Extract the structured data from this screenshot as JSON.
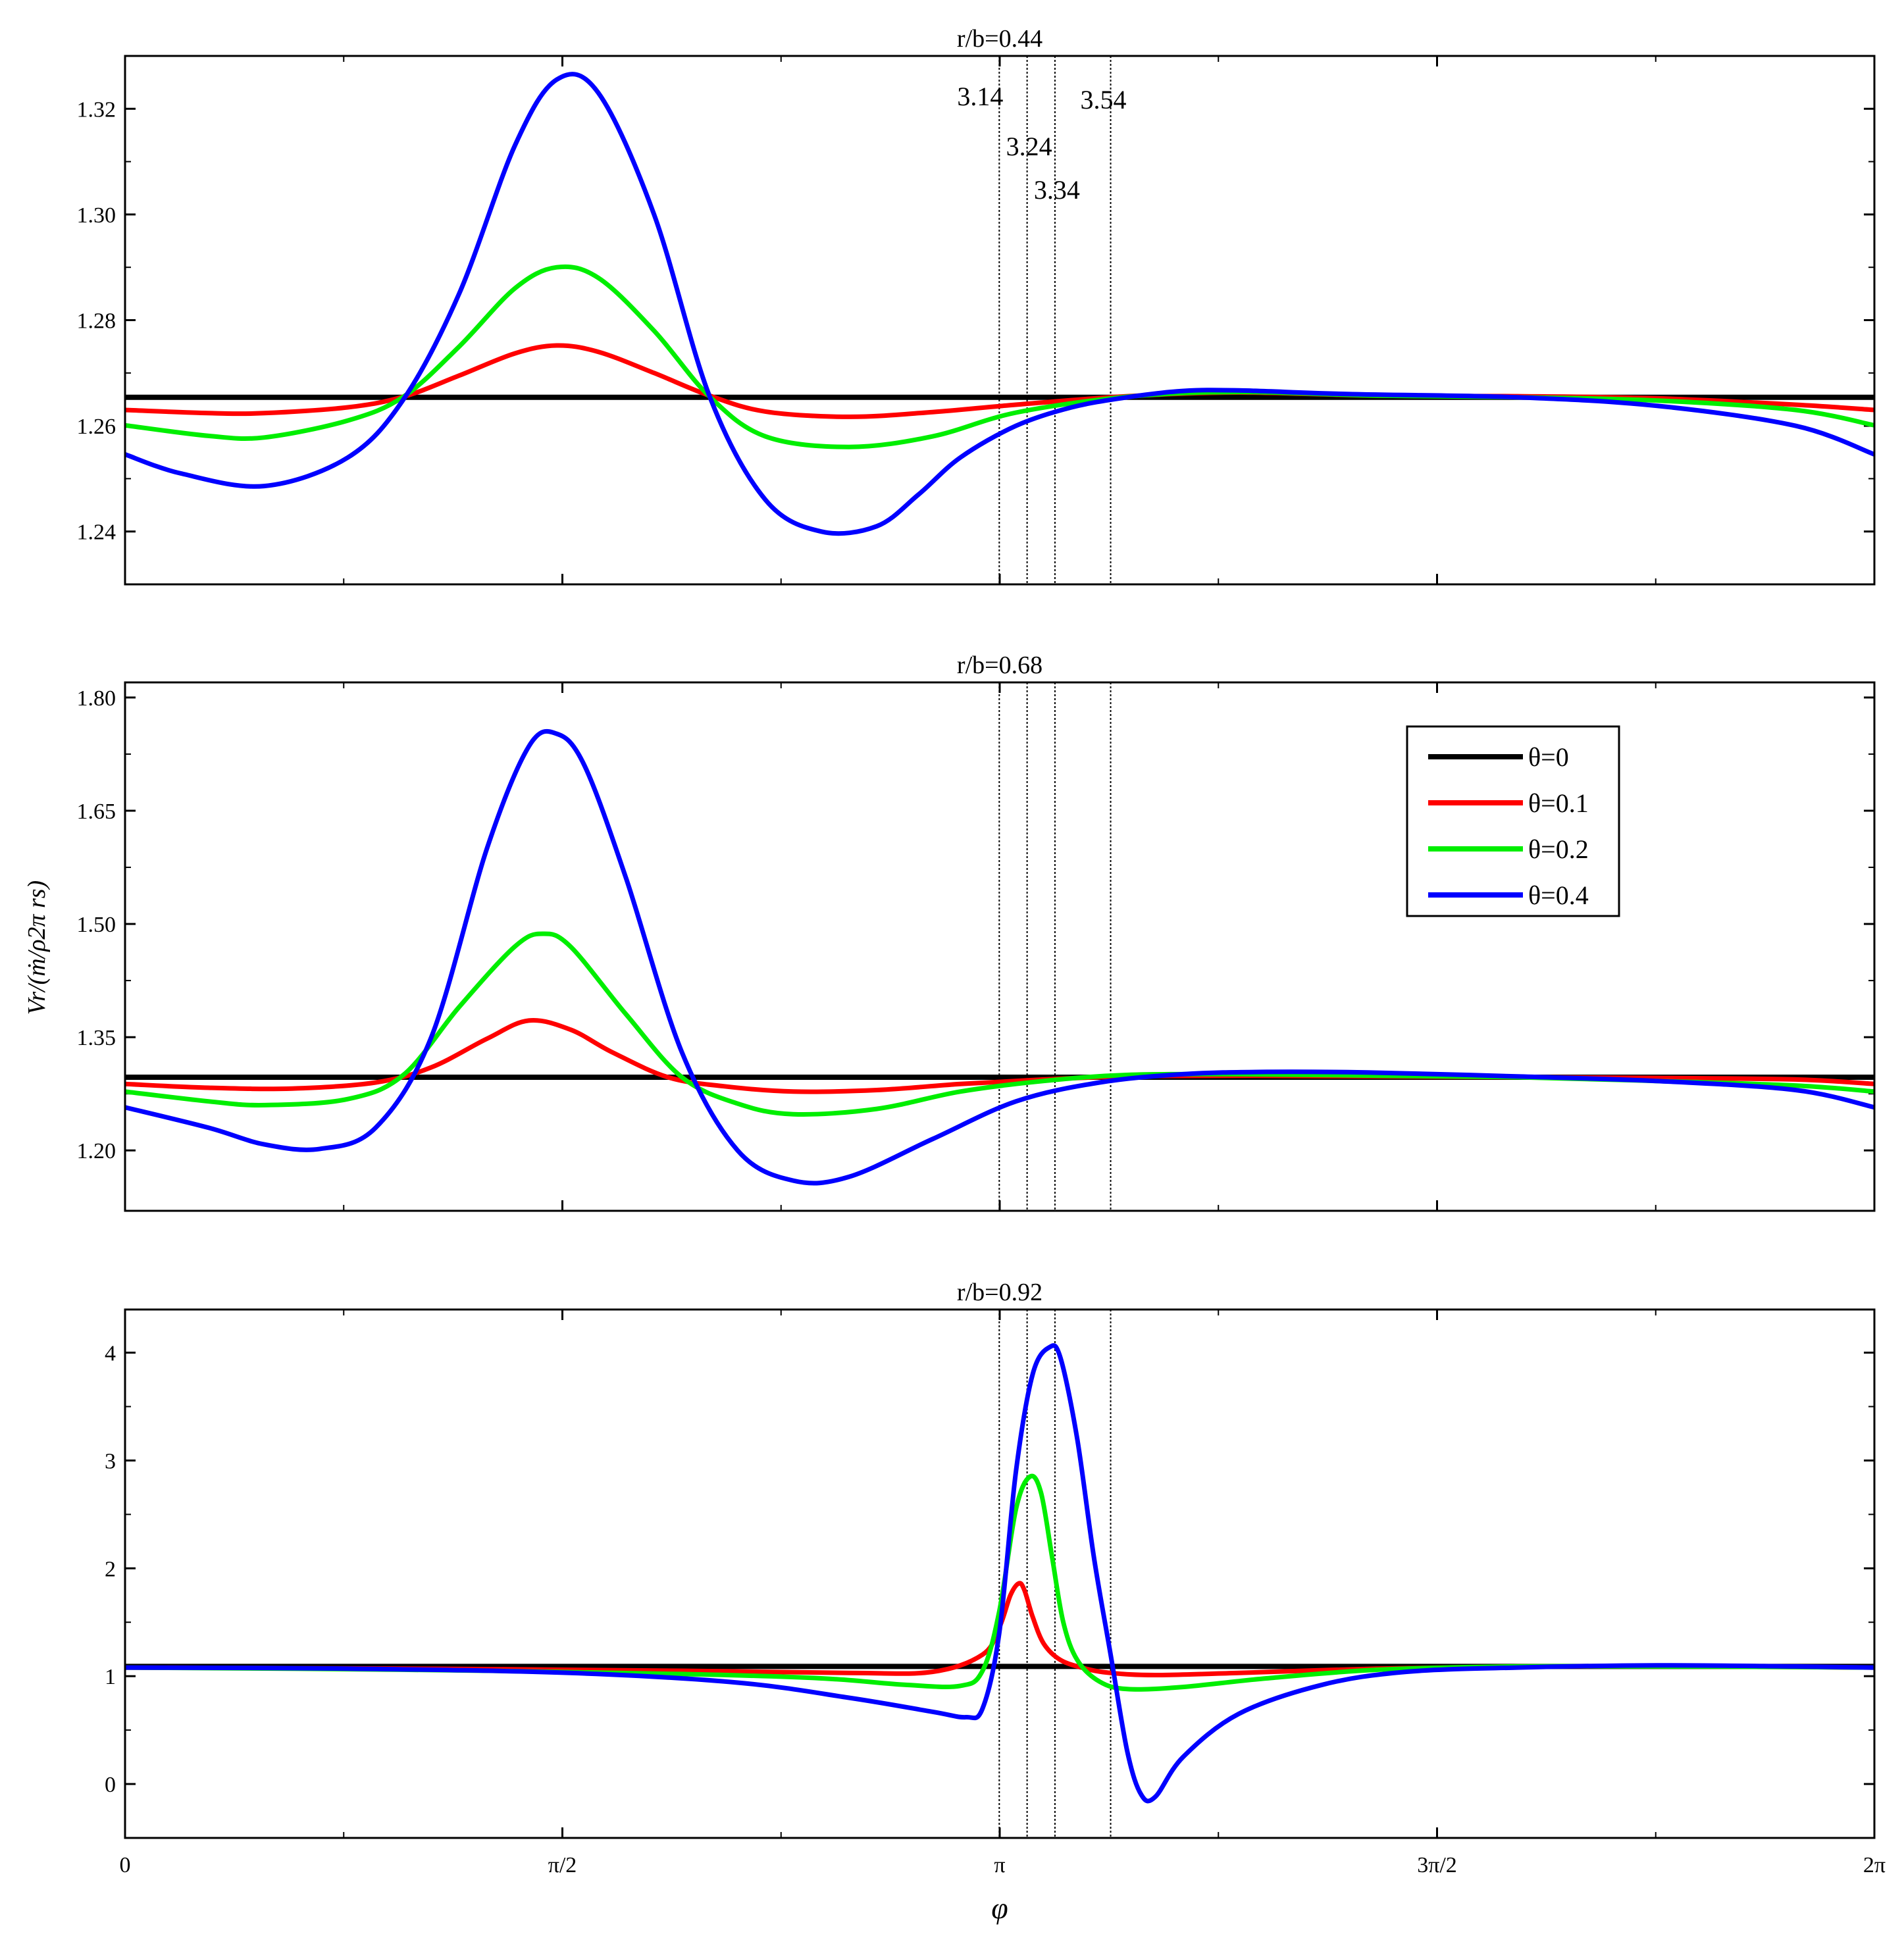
{
  "chart_data": {
    "type": "line",
    "ylabel": "Vr/(ṁ/ρ2π rs)",
    "xlabel": "φ",
    "x_range": [
      0,
      6.2832
    ],
    "x_ticks": [
      {
        "value": 0,
        "label": "0"
      },
      {
        "value": 1.5708,
        "label": "π/2"
      },
      {
        "value": 3.1416,
        "label": "π"
      },
      {
        "value": 4.7124,
        "label": "3π/2"
      },
      {
        "value": 6.2832,
        "label": "2π"
      }
    ],
    "vlines": [
      {
        "x": 3.14,
        "label": "3.14"
      },
      {
        "x": 3.24,
        "label": "3.24"
      },
      {
        "x": 3.34,
        "label": "3.34"
      },
      {
        "x": 3.54,
        "label": "3.54"
      }
    ],
    "legend": {
      "placement": "panel 2, upper right",
      "entries": [
        {
          "label": "θ=0",
          "color": "#000000"
        },
        {
          "label": "θ=0.1",
          "color": "#ff0000"
        },
        {
          "label": "θ=0.2",
          "color": "#00ee00"
        },
        {
          "label": "θ=0.4",
          "color": "#0000ff"
        }
      ]
    },
    "panels": [
      {
        "title": "r/b=0.44",
        "ylim": [
          1.23,
          1.33
        ],
        "yticks": [
          1.24,
          1.26,
          1.28,
          1.3,
          1.32
        ],
        "ytick_labels": [
          "1.24",
          "1.26",
          "1.28",
          "1.30",
          "1.32"
        ],
        "series": [
          {
            "name": "θ=0",
            "color": "#000000",
            "x": [
              0,
              6.2832
            ],
            "y": [
              1.2654,
              1.2654
            ]
          },
          {
            "name": "θ=0.1",
            "color": "#ff0000",
            "x": [
              0,
              0.3,
              0.5,
              0.8,
              1.0,
              1.2,
              1.4,
              1.55,
              1.7,
              1.9,
              2.1,
              2.3,
              2.6,
              2.9,
              3.2,
              3.6,
              4.0,
              4.5,
              5.0,
              5.5,
              6.0,
              6.2832
            ],
            "y": [
              1.263,
              1.2624,
              1.2624,
              1.2635,
              1.2655,
              1.2695,
              1.2737,
              1.2752,
              1.274,
              1.27,
              1.2657,
              1.2627,
              1.2617,
              1.2626,
              1.264,
              1.2656,
              1.2663,
              1.2657,
              1.2656,
              1.2652,
              1.264,
              1.263
            ]
          },
          {
            "name": "θ=0.2",
            "color": "#00ee00",
            "x": [
              0,
              0.3,
              0.5,
              0.8,
              1.0,
              1.2,
              1.4,
              1.55,
              1.7,
              1.9,
              2.1,
              2.3,
              2.6,
              2.9,
              3.2,
              3.6,
              4.0,
              4.5,
              5.0,
              5.5,
              6.0,
              6.2832
            ],
            "y": [
              1.2601,
              1.2581,
              1.2578,
              1.261,
              1.2655,
              1.275,
              1.286,
              1.29,
              1.288,
              1.278,
              1.2655,
              1.258,
              1.256,
              1.258,
              1.2625,
              1.2655,
              1.2664,
              1.2657,
              1.2654,
              1.2648,
              1.263,
              1.2601
            ]
          },
          {
            "name": "θ=0.4",
            "color": "#0000ff",
            "x": [
              0,
              0.2,
              0.5,
              0.8,
              1.0,
              1.2,
              1.4,
              1.55,
              1.7,
              1.9,
              2.1,
              2.3,
              2.5,
              2.7,
              2.85,
              3.0,
              3.2,
              3.4,
              3.6,
              3.8,
              4.0,
              4.4,
              5.0,
              5.5,
              6.0,
              6.2832
            ],
            "y": [
              1.2546,
              1.251,
              1.2486,
              1.254,
              1.265,
              1.285,
              1.313,
              1.3255,
              1.323,
              1.3,
              1.2655,
              1.246,
              1.24,
              1.241,
              1.247,
              1.254,
              1.26,
              1.2635,
              1.2654,
              1.2666,
              1.2667,
              1.266,
              1.2654,
              1.2638,
              1.26,
              1.2546
            ]
          }
        ]
      },
      {
        "title": "r/b=0.68",
        "ylim": [
          1.12,
          1.82
        ],
        "yticks": [
          1.2,
          1.35,
          1.5,
          1.65,
          1.8
        ],
        "ytick_labels": [
          "1.20",
          "1.35",
          "1.50",
          "1.65",
          "1.80"
        ],
        "series": [
          {
            "name": "θ=0",
            "color": "#000000",
            "x": [
              0,
              6.2832
            ],
            "y": [
              1.297,
              1.297
            ]
          },
          {
            "name": "θ=0.1",
            "color": "#ff0000",
            "x": [
              0,
              0.3,
              0.6,
              0.9,
              1.1,
              1.3,
              1.45,
              1.6,
              1.75,
              1.95,
              2.15,
              2.4,
              2.7,
              3.0,
              3.3,
              3.6,
              4.0,
              4.5,
              5.0,
              5.5,
              6.0,
              6.2832
            ],
            "y": [
              1.288,
              1.283,
              1.282,
              1.29,
              1.31,
              1.348,
              1.372,
              1.36,
              1.33,
              1.297,
              1.285,
              1.278,
              1.28,
              1.288,
              1.294,
              1.298,
              1.299,
              1.298,
              1.297,
              1.296,
              1.294,
              1.288
            ]
          },
          {
            "name": "θ=0.2",
            "color": "#00ee00",
            "x": [
              0,
              0.3,
              0.5,
              0.8,
              1.0,
              1.2,
              1.4,
              1.5,
              1.6,
              1.8,
              2.0,
              2.2,
              2.4,
              2.7,
              3.0,
              3.3,
              3.6,
              4.0,
              4.5,
              5.0,
              5.5,
              6.0,
              6.2832
            ],
            "y": [
              1.278,
              1.265,
              1.26,
              1.268,
              1.3,
              1.39,
              1.47,
              1.487,
              1.47,
              1.38,
              1.297,
              1.262,
              1.248,
              1.255,
              1.278,
              1.292,
              1.3,
              1.301,
              1.299,
              1.297,
              1.292,
              1.286,
              1.278
            ]
          },
          {
            "name": "θ=0.4",
            "color": "#0000ff",
            "x": [
              0,
              0.3,
              0.5,
              0.7,
              0.9,
              1.1,
              1.3,
              1.45,
              1.55,
              1.65,
              1.8,
              2.0,
              2.2,
              2.4,
              2.6,
              2.9,
              3.2,
              3.5,
              3.8,
              4.1,
              4.5,
              5.0,
              5.5,
              6.0,
              6.2832
            ],
            "y": [
              1.257,
              1.23,
              1.208,
              1.202,
              1.23,
              1.35,
              1.6,
              1.735,
              1.752,
              1.71,
              1.56,
              1.33,
              1.2,
              1.16,
              1.165,
              1.215,
              1.265,
              1.29,
              1.301,
              1.304,
              1.303,
              1.298,
              1.292,
              1.28,
              1.257
            ]
          }
        ]
      },
      {
        "title": "r/b=0.92",
        "ylim": [
          -0.5,
          4.4
        ],
        "yticks": [
          0,
          1,
          2,
          3,
          4
        ],
        "ytick_labels": [
          "0",
          "1",
          "2",
          "3",
          "4"
        ],
        "series": [
          {
            "name": "θ=0",
            "color": "#000000",
            "x": [
              0,
              6.2832
            ],
            "y": [
              1.09,
              1.09
            ]
          },
          {
            "name": "θ=0.1",
            "color": "#ff0000",
            "x": [
              0,
              1.0,
              2.0,
              2.6,
              2.9,
              3.08,
              3.14,
              3.18,
              3.21,
              3.23,
              3.26,
              3.3,
              3.36,
              3.45,
              3.54,
              3.7,
              4.0,
              4.5,
              5.0,
              5.5,
              6.0,
              6.2832
            ],
            "y": [
              1.08,
              1.07,
              1.05,
              1.03,
              1.04,
              1.2,
              1.45,
              1.75,
              1.86,
              1.8,
              1.55,
              1.3,
              1.15,
              1.07,
              1.03,
              1.01,
              1.03,
              1.07,
              1.09,
              1.09,
              1.085,
              1.08
            ]
          },
          {
            "name": "θ=0.2",
            "color": "#00ee00",
            "x": [
              0,
              1.0,
              2.0,
              2.5,
              2.8,
              3.0,
              3.08,
              3.14,
              3.2,
              3.25,
              3.29,
              3.33,
              3.37,
              3.42,
              3.5,
              3.6,
              3.8,
              4.1,
              4.5,
              5.0,
              5.5,
              6.0,
              6.2832
            ],
            "y": [
              1.08,
              1.06,
              1.02,
              0.98,
              0.92,
              0.91,
              1.05,
              1.6,
              2.55,
              2.85,
              2.7,
              2.1,
              1.5,
              1.15,
              0.95,
              0.88,
              0.9,
              0.98,
              1.06,
              1.09,
              1.09,
              1.085,
              1.08
            ]
          },
          {
            "name": "θ=0.4",
            "color": "#0000ff",
            "x": [
              0,
              0.8,
              1.6,
              2.2,
              2.6,
              2.9,
              3.02,
              3.08,
              3.14,
              3.2,
              3.26,
              3.32,
              3.36,
              3.42,
              3.48,
              3.54,
              3.6,
              3.65,
              3.7,
              3.8,
              4.0,
              4.3,
              4.6,
              5.0,
              5.5,
              6.0,
              6.2832
            ],
            "y": [
              1.08,
              1.07,
              1.03,
              0.94,
              0.8,
              0.67,
              0.62,
              0.7,
              1.4,
              2.9,
              3.8,
              4.05,
              3.95,
              3.2,
              2.1,
              1.2,
              0.3,
              -0.1,
              -0.12,
              0.25,
              0.65,
              0.92,
              1.04,
              1.08,
              1.1,
              1.09,
              1.08
            ]
          }
        ]
      }
    ]
  }
}
